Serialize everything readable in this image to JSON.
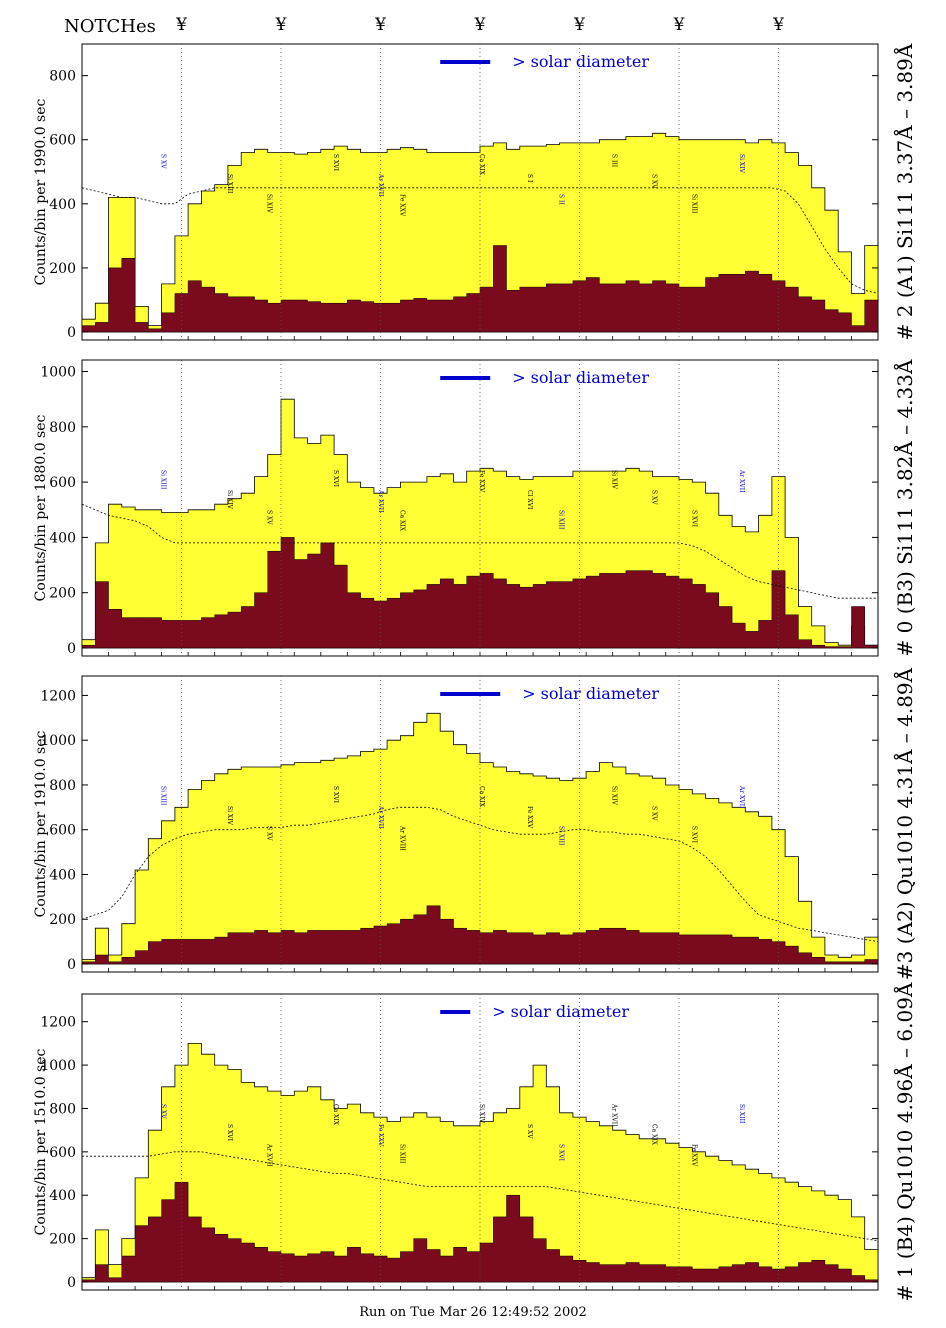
{
  "header": {
    "notches_label": "NOTCHes",
    "notch_symbol": "¥",
    "notch_channels": [
      37.5,
      75,
      112.5,
      150,
      187.5,
      225,
      262.5
    ]
  },
  "footer": {
    "run_text": "Run on Tue Mar 26 12:49:52 2002"
  },
  "colors": {
    "fill_total": "#ffff33",
    "fill_dark": "#7a0a1e",
    "solar_bar": "#0000cc",
    "line_labels": "#000000",
    "line_labels_blue": "#0000cc"
  },
  "chart_data": [
    {
      "type": "area",
      "panel_id": "A1",
      "right_title": "# 2 (A1) Si111  3.37Å – 3.89Å",
      "ylabel": "Counts/bin per  1990.0 sec",
      "yticks": [
        0,
        200,
        400,
        600,
        800
      ],
      "ylim": [
        0,
        880
      ],
      "solar_diameter_label": "> solar diameter",
      "x": [
        0,
        5,
        10,
        15,
        20,
        25,
        30,
        35,
        40,
        45,
        50,
        55,
        60,
        65,
        70,
        75,
        80,
        85,
        90,
        95,
        100,
        105,
        110,
        115,
        120,
        125,
        130,
        135,
        140,
        145,
        150,
        155,
        160,
        165,
        170,
        175,
        180,
        185,
        190,
        195,
        200,
        205,
        210,
        215,
        220,
        225,
        230,
        235,
        240,
        245,
        250,
        255,
        260,
        265,
        270,
        275,
        280,
        285,
        290,
        295,
        300
      ],
      "series": [
        {
          "name": "",
          "values": [
            40,
            90,
            420,
            420,
            80,
            20,
            150,
            300,
            400,
            440,
            460,
            520,
            560,
            570,
            560,
            560,
            555,
            560,
            570,
            580,
            570,
            560,
            560,
            570,
            575,
            570,
            560,
            560,
            560,
            560,
            580,
            590,
            570,
            580,
            580,
            585,
            590,
            590,
            590,
            600,
            600,
            610,
            610,
            620,
            610,
            600,
            600,
            600,
            600,
            600,
            590,
            600,
            590,
            560,
            520,
            450,
            380,
            250,
            120,
            270,
            40
          ]
        },
        {
          "name": "",
          "values": [
            20,
            30,
            200,
            230,
            30,
            10,
            60,
            120,
            160,
            140,
            120,
            110,
            110,
            100,
            90,
            100,
            100,
            95,
            90,
            90,
            100,
            95,
            90,
            90,
            100,
            105,
            100,
            100,
            110,
            120,
            140,
            270,
            130,
            140,
            140,
            150,
            150,
            160,
            170,
            150,
            150,
            160,
            150,
            160,
            150,
            140,
            140,
            170,
            180,
            180,
            190,
            180,
            160,
            140,
            110,
            100,
            70,
            60,
            20,
            100,
            10
          ]
        },
        {
          "name": "",
          "values": [
            450,
            440,
            430,
            420,
            420,
            410,
            400,
            400,
            430,
            440,
            450,
            450,
            450,
            450,
            450,
            450,
            450,
            450,
            450,
            450,
            450,
            450,
            450,
            450,
            450,
            450,
            450,
            450,
            450,
            450,
            450,
            450,
            450,
            450,
            450,
            450,
            450,
            450,
            450,
            450,
            450,
            450,
            450,
            450,
            450,
            450,
            450,
            450,
            450,
            450,
            450,
            450,
            450,
            440,
            400,
            330,
            260,
            200,
            150,
            130,
            120
          ]
        }
      ],
      "line_labels": [
        "S XV",
        "Si XIII",
        "Si XIV",
        "S XVI",
        "Ar XVII",
        "Fe XXV",
        "Ca XIX",
        "S I",
        "S II",
        "S III"
      ]
    },
    {
      "type": "area",
      "panel_id": "B3",
      "right_title": "# 0 (B3) Si111  3.82Å – 4.33Å",
      "ylabel": "Counts/bin per  1880.0 sec",
      "yticks": [
        0,
        200,
        400,
        600,
        800,
        1000
      ],
      "ylim": [
        0,
        1020
      ],
      "solar_diameter_label": "> solar diameter",
      "x": [
        0,
        5,
        10,
        15,
        20,
        25,
        30,
        35,
        40,
        45,
        50,
        55,
        60,
        65,
        70,
        75,
        80,
        85,
        90,
        95,
        100,
        105,
        110,
        115,
        120,
        125,
        130,
        135,
        140,
        145,
        150,
        155,
        160,
        165,
        170,
        175,
        180,
        185,
        190,
        195,
        200,
        205,
        210,
        215,
        220,
        225,
        230,
        235,
        240,
        245,
        250,
        255,
        260,
        265,
        270,
        275,
        280,
        285,
        290,
        295,
        300
      ],
      "series": [
        {
          "name": "",
          "values": [
            30,
            380,
            520,
            510,
            500,
            500,
            490,
            490,
            500,
            500,
            520,
            540,
            560,
            620,
            700,
            900,
            760,
            740,
            770,
            700,
            600,
            580,
            560,
            580,
            600,
            600,
            620,
            630,
            600,
            640,
            650,
            640,
            620,
            610,
            620,
            620,
            620,
            640,
            640,
            640,
            640,
            650,
            640,
            620,
            620,
            610,
            600,
            560,
            480,
            440,
            420,
            480,
            620,
            400,
            150,
            80,
            20,
            10,
            80,
            10,
            10
          ]
        },
        {
          "name": "",
          "values": [
            10,
            240,
            140,
            110,
            110,
            110,
            100,
            100,
            100,
            110,
            120,
            130,
            150,
            200,
            350,
            400,
            320,
            340,
            380,
            300,
            200,
            180,
            170,
            180,
            200,
            210,
            230,
            250,
            230,
            260,
            270,
            250,
            230,
            220,
            230,
            240,
            240,
            250,
            260,
            270,
            270,
            280,
            280,
            270,
            260,
            250,
            230,
            200,
            150,
            90,
            60,
            100,
            280,
            120,
            30,
            10,
            5,
            5,
            150,
            10,
            5
          ]
        },
        {
          "name": "",
          "values": [
            520,
            500,
            480,
            470,
            460,
            440,
            400,
            380,
            380,
            380,
            380,
            380,
            380,
            380,
            380,
            380,
            380,
            380,
            380,
            380,
            380,
            380,
            380,
            380,
            380,
            380,
            380,
            380,
            380,
            380,
            380,
            380,
            380,
            380,
            380,
            380,
            380,
            380,
            380,
            380,
            380,
            380,
            380,
            380,
            380,
            380,
            370,
            350,
            320,
            290,
            260,
            240,
            230,
            220,
            210,
            200,
            190,
            180,
            180,
            180,
            180
          ]
        }
      ],
      "line_labels": [
        "Si XIII",
        "Si XIV",
        "S XV",
        "S XVI",
        "Ar XVII",
        "Ca XIX",
        "Fe XXV",
        "Cl XVI"
      ]
    },
    {
      "type": "area",
      "panel_id": "A2",
      "right_title": "#3 (A2) Qu1010  4.31Å – 4.89Å",
      "ylabel": "Counts/bin per  1910.0 sec",
      "yticks": [
        0,
        200,
        400,
        600,
        800,
        1000,
        1200
      ],
      "ylim": [
        0,
        1260
      ],
      "solar_diameter_label": "> solar diameter",
      "x": [
        0,
        5,
        10,
        15,
        20,
        25,
        30,
        35,
        40,
        45,
        50,
        55,
        60,
        65,
        70,
        75,
        80,
        85,
        90,
        95,
        100,
        105,
        110,
        115,
        120,
        125,
        130,
        135,
        140,
        145,
        150,
        155,
        160,
        165,
        170,
        175,
        180,
        185,
        190,
        195,
        200,
        205,
        210,
        215,
        220,
        225,
        230,
        235,
        240,
        245,
        250,
        255,
        260,
        265,
        270,
        275,
        280,
        285,
        290,
        295,
        300
      ],
      "series": [
        {
          "name": "",
          "values": [
            20,
            160,
            40,
            180,
            420,
            560,
            640,
            700,
            780,
            820,
            850,
            870,
            880,
            880,
            880,
            890,
            900,
            900,
            910,
            920,
            930,
            950,
            960,
            1000,
            1020,
            1080,
            1120,
            1040,
            980,
            940,
            900,
            880,
            860,
            850,
            840,
            830,
            820,
            830,
            860,
            900,
            880,
            850,
            840,
            830,
            800,
            780,
            760,
            740,
            720,
            700,
            680,
            660,
            600,
            480,
            280,
            120,
            40,
            30,
            40,
            120,
            20
          ]
        },
        {
          "name": "",
          "values": [
            10,
            40,
            10,
            30,
            60,
            100,
            110,
            110,
            110,
            110,
            120,
            140,
            140,
            150,
            140,
            150,
            140,
            150,
            150,
            150,
            150,
            160,
            170,
            180,
            200,
            220,
            260,
            200,
            160,
            150,
            140,
            150,
            140,
            140,
            130,
            140,
            130,
            140,
            150,
            160,
            160,
            150,
            140,
            140,
            140,
            130,
            130,
            130,
            130,
            120,
            120,
            110,
            100,
            80,
            50,
            30,
            10,
            10,
            10,
            20,
            10
          ]
        },
        {
          "name": "",
          "values": [
            200,
            220,
            240,
            300,
            400,
            480,
            530,
            560,
            580,
            590,
            600,
            600,
            600,
            610,
            610,
            610,
            620,
            620,
            630,
            640,
            650,
            660,
            670,
            690,
            700,
            700,
            700,
            690,
            660,
            640,
            620,
            600,
            590,
            580,
            580,
            580,
            590,
            600,
            600,
            590,
            590,
            580,
            580,
            570,
            560,
            550,
            520,
            480,
            420,
            350,
            280,
            220,
            200,
            180,
            160,
            150,
            140,
            130,
            120,
            110,
            100
          ]
        }
      ],
      "line_labels": [
        "Si XIII",
        "Si XIV",
        "S XV",
        "S XVI",
        "Ar XVII",
        "Ar XVIII",
        "Ca XIX",
        "Fe XXV"
      ]
    },
    {
      "type": "area",
      "panel_id": "B4",
      "right_title": "# 1 (B4) Qu1010 4.96Å – 6.09Å",
      "ylabel": "Counts/bin per  1510.0 sec",
      "yticks": [
        0,
        200,
        400,
        600,
        800,
        1000,
        1200
      ],
      "ylim": [
        0,
        1300
      ],
      "solar_diameter_label": "> solar diameter",
      "x": [
        0,
        5,
        10,
        15,
        20,
        25,
        30,
        35,
        40,
        45,
        50,
        55,
        60,
        65,
        70,
        75,
        80,
        85,
        90,
        95,
        100,
        105,
        110,
        115,
        120,
        125,
        130,
        135,
        140,
        145,
        150,
        155,
        160,
        165,
        170,
        175,
        180,
        185,
        190,
        195,
        200,
        205,
        210,
        215,
        220,
        225,
        230,
        235,
        240,
        245,
        250,
        255,
        260,
        265,
        270,
        275,
        280,
        285,
        290,
        295,
        300
      ],
      "series": [
        {
          "name": "",
          "values": [
            20,
            240,
            80,
            200,
            480,
            700,
            900,
            1000,
            1100,
            1050,
            1000,
            980,
            920,
            900,
            880,
            860,
            880,
            900,
            840,
            800,
            820,
            780,
            760,
            740,
            760,
            780,
            760,
            740,
            720,
            720,
            740,
            780,
            800,
            900,
            1000,
            900,
            780,
            760,
            740,
            720,
            700,
            680,
            660,
            660,
            640,
            620,
            600,
            580,
            560,
            540,
            520,
            500,
            480,
            460,
            440,
            420,
            400,
            380,
            300,
            150,
            20
          ]
        },
        {
          "name": "",
          "values": [
            10,
            80,
            20,
            120,
            260,
            300,
            380,
            460,
            300,
            250,
            220,
            200,
            180,
            160,
            140,
            130,
            120,
            130,
            140,
            120,
            160,
            130,
            120,
            110,
            140,
            200,
            150,
            120,
            160,
            140,
            180,
            300,
            400,
            300,
            200,
            150,
            120,
            100,
            90,
            80,
            80,
            90,
            80,
            80,
            70,
            70,
            60,
            60,
            70,
            80,
            90,
            70,
            60,
            70,
            90,
            100,
            80,
            60,
            30,
            10,
            5
          ]
        },
        {
          "name": "",
          "values": [
            580,
            580,
            580,
            580,
            580,
            580,
            590,
            600,
            600,
            600,
            590,
            580,
            570,
            560,
            550,
            540,
            530,
            520,
            510,
            500,
            500,
            490,
            480,
            470,
            460,
            450,
            440,
            440,
            440,
            440,
            440,
            440,
            440,
            440,
            440,
            440,
            430,
            420,
            410,
            400,
            390,
            380,
            370,
            360,
            350,
            340,
            330,
            320,
            310,
            300,
            290,
            280,
            270,
            260,
            250,
            240,
            230,
            220,
            210,
            200,
            190
          ]
        }
      ],
      "line_labels": [
        "S XV",
        "S XVI",
        "Ar XVII",
        "Ca XIX",
        "Fe XXV",
        "Si XIII",
        "Si XIV"
      ]
    }
  ]
}
